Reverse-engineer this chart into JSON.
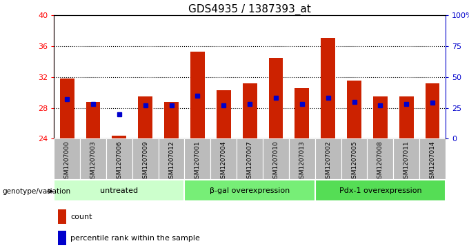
{
  "title": "GDS4935 / 1387393_at",
  "samples": [
    "GSM1207000",
    "GSM1207003",
    "GSM1207006",
    "GSM1207009",
    "GSM1207012",
    "GSM1207001",
    "GSM1207004",
    "GSM1207007",
    "GSM1207010",
    "GSM1207013",
    "GSM1207002",
    "GSM1207005",
    "GSM1207008",
    "GSM1207011",
    "GSM1207014"
  ],
  "counts": [
    31.8,
    28.8,
    24.4,
    29.5,
    28.8,
    35.3,
    30.3,
    31.2,
    34.5,
    30.5,
    37.0,
    31.5,
    29.5,
    29.5,
    31.2
  ],
  "percentiles": [
    32,
    28,
    20,
    27,
    27,
    35,
    27,
    28,
    33,
    28,
    33,
    30,
    27,
    28,
    29
  ],
  "groups": [
    {
      "label": "untreated",
      "start": 0,
      "end": 5,
      "color": "#ccffcc"
    },
    {
      "label": "β-gal overexpression",
      "start": 5,
      "end": 10,
      "color": "#77ee77"
    },
    {
      "label": "Pdx-1 overexpression",
      "start": 10,
      "end": 15,
      "color": "#55dd55"
    }
  ],
  "ylim_left": [
    24,
    40
  ],
  "ylim_right": [
    0,
    100
  ],
  "yticks_left": [
    24,
    28,
    32,
    36,
    40
  ],
  "yticks_right": [
    0,
    25,
    50,
    75,
    100
  ],
  "ytick_labels_right": [
    "0",
    "25",
    "50",
    "75",
    "100%"
  ],
  "bar_color": "#cc2200",
  "percentile_color": "#0000cc",
  "tick_bg_color": "#bbbbbb",
  "bar_width": 0.55,
  "bar_bottom": 24,
  "grid_lines": [
    28,
    32,
    36
  ],
  "genotype_label": "genotype/variation",
  "legend_count": "count",
  "legend_pct": "percentile rank within the sample"
}
